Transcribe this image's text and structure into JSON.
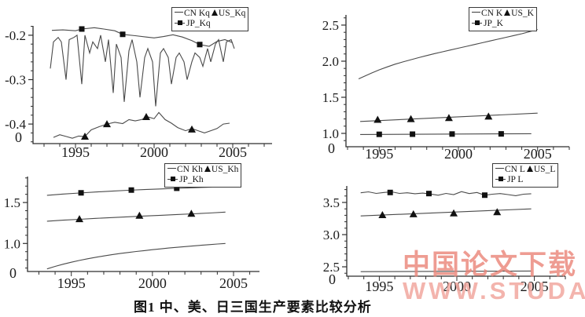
{
  "caption": "图1 中、美、日三国生产要素比较分析",
  "watermark": {
    "line1": "中国论文下载",
    "line2": "WWW.STUDA.",
    "color1": "#ea8478",
    "color2": "#f2a89f"
  },
  "colors": {
    "axis": "#2e2e2e",
    "line": "#4a4a4a",
    "marker": "#111111",
    "text": "#1c1c1c"
  },
  "chart_data": [
    {
      "id": "Kq",
      "type": "line",
      "legend": {
        "cn": "CN Kq",
        "us": "US_Kq",
        "jp": "JP_Kq"
      },
      "legend_position": "top-right",
      "grid": false,
      "xlim": [
        1992.3,
        2007.5
      ],
      "ylim": [
        -0.444,
        -0.179
      ],
      "xticks": [
        1995,
        2000,
        2005
      ],
      "xtick_labels": [
        "1995",
        "2000",
        "2005"
      ],
      "yticks": [
        -0.2,
        -0.3,
        -0.4
      ],
      "ytick_labels": [
        "-0.2",
        "-0.3",
        "-0.4"
      ],
      "y_minor_step": 0.02,
      "origin_label": "0",
      "series": [
        {
          "name": "CN_Kq",
          "marker": "none",
          "x": [
            1993.4,
            1993.6,
            1993.9,
            1994.1,
            1994.4,
            1994.6,
            1994.9,
            1995.1,
            1995.4,
            1995.6,
            1995.9,
            1996.1,
            1996.4,
            1996.6,
            1996.9,
            1997.1,
            1997.4,
            1997.6,
            1997.9,
            1998.1,
            1998.4,
            1998.6,
            1998.9,
            1999.1,
            1999.4,
            1999.6,
            1999.9,
            2000.1,
            2000.4,
            2000.6,
            2000.9,
            2001.1,
            2001.4,
            2001.6,
            2001.9,
            2002.1,
            2002.4,
            2002.6,
            2002.9,
            2003.1,
            2003.4,
            2003.6,
            2003.9,
            2004.1,
            2004.4,
            2004.6,
            2004.9,
            2005.1
          ],
          "y": [
            -0.275,
            -0.215,
            -0.205,
            -0.215,
            -0.3,
            -0.21,
            -0.205,
            -0.2,
            -0.31,
            -0.2,
            -0.24,
            -0.215,
            -0.23,
            -0.2,
            -0.26,
            -0.21,
            -0.33,
            -0.22,
            -0.25,
            -0.35,
            -0.235,
            -0.21,
            -0.26,
            -0.34,
            -0.25,
            -0.23,
            -0.26,
            -0.36,
            -0.24,
            -0.23,
            -0.25,
            -0.31,
            -0.25,
            -0.24,
            -0.26,
            -0.3,
            -0.26,
            -0.24,
            -0.25,
            -0.27,
            -0.23,
            -0.26,
            -0.22,
            -0.21,
            -0.26,
            -0.215,
            -0.21,
            -0.23
          ]
        },
        {
          "name": "US_Kq",
          "marker": "triangle",
          "x": [
            1993.6,
            1994.0,
            1994.4,
            1994.8,
            1995.2,
            1995.6,
            1996.0,
            1996.5,
            1997.0,
            1997.5,
            1998.0,
            1998.4,
            1998.8,
            1999.2,
            1999.6,
            2000.0,
            2000.3,
            2000.7,
            2001.1,
            2001.5,
            2002.0,
            2002.4,
            2002.8,
            2003.2,
            2003.6,
            2004.0,
            2004.4,
            2004.8
          ],
          "y": [
            -0.43,
            -0.424,
            -0.428,
            -0.432,
            -0.427,
            -0.428,
            -0.413,
            -0.406,
            -0.4,
            -0.396,
            -0.399,
            -0.39,
            -0.393,
            -0.39,
            -0.384,
            -0.388,
            -0.374,
            -0.39,
            -0.398,
            -0.408,
            -0.415,
            -0.41,
            -0.415,
            -0.42,
            -0.415,
            -0.41,
            -0.4,
            -0.398
          ],
          "markers": [
            [
              1995.6,
              -0.428
            ],
            [
              1997.0,
              -0.4
            ],
            [
              1999.5,
              -0.384
            ],
            [
              2002.4,
              -0.412
            ]
          ]
        },
        {
          "name": "JP_Kq",
          "marker": "square",
          "x": [
            1993.5,
            1994.2,
            1995.0,
            1995.4,
            1996.2,
            1996.8,
            1997.5,
            1998.0,
            1998.8,
            1999.5,
            2000.0,
            2000.6,
            2001.2,
            2001.8,
            2002.4,
            2002.9,
            2003.5,
            2004.0,
            2004.5,
            2005.0
          ],
          "y": [
            -0.189,
            -0.188,
            -0.19,
            -0.186,
            -0.183,
            -0.186,
            -0.19,
            -0.198,
            -0.201,
            -0.204,
            -0.206,
            -0.203,
            -0.199,
            -0.204,
            -0.212,
            -0.221,
            -0.225,
            -0.214,
            -0.21,
            -0.217
          ],
          "markers": [
            [
              1995.4,
              -0.186
            ],
            [
              1998.0,
              -0.198
            ],
            [
              2002.9,
              -0.221
            ]
          ]
        }
      ]
    },
    {
      "id": "K",
      "type": "line",
      "legend": {
        "cn": "CN K",
        "us": "US_K",
        "jp": "JP_K"
      },
      "legend_position": "top-right",
      "grid": false,
      "xlim": [
        1992.9,
        2007.0
      ],
      "ylim": [
        0.815,
        2.641
      ],
      "xticks": [
        1995,
        2000,
        2005
      ],
      "xtick_labels": [
        "1995",
        "2000",
        "2005"
      ],
      "yticks": [
        2.5,
        2.0,
        1.5,
        1.0
      ],
      "ytick_labels": [
        "2.5",
        "2.0",
        "1.5",
        "1.0"
      ],
      "y_minor_step": 0.1,
      "origin_label": "0",
      "series": [
        {
          "name": "CN_K",
          "marker": "none",
          "x": [
            1993.7,
            1994.0,
            1994.5,
            1995.0,
            1995.5,
            1996.0,
            1996.5,
            1997.0,
            1997.5,
            1998.0,
            1998.5,
            1999.0,
            1999.5,
            2000.0,
            2000.5,
            2001.0,
            2001.5,
            2002.0,
            2002.5,
            2003.0,
            2003.5,
            2004.0,
            2004.5,
            2005.0
          ],
          "y": [
            1.755,
            1.785,
            1.835,
            1.88,
            1.92,
            1.958,
            1.99,
            2.02,
            2.05,
            2.078,
            2.105,
            2.13,
            2.155,
            2.18,
            2.205,
            2.23,
            2.255,
            2.28,
            2.305,
            2.33,
            2.355,
            2.38,
            2.41,
            2.44
          ]
        },
        {
          "name": "US_K",
          "marker": "triangle",
          "x": [
            1993.8,
            2005.0
          ],
          "y": [
            1.165,
            1.28
          ],
          "markers": [
            [
              1994.9,
              1.19
            ],
            [
              1997.0,
              1.2
            ],
            [
              1999.4,
              1.215
            ],
            [
              2001.9,
              1.235
            ]
          ]
        },
        {
          "name": "JP_K",
          "marker": "square",
          "x": [
            1993.8,
            2004.6
          ],
          "y": [
            0.985,
            0.995
          ],
          "markers": [
            [
              1995.0,
              0.987
            ],
            [
              1997.1,
              0.989
            ],
            [
              1999.6,
              0.991
            ],
            [
              2002.7,
              0.993
            ]
          ]
        }
      ]
    },
    {
      "id": "Kh",
      "type": "line",
      "legend": {
        "cn": "CN Kh",
        "us": "US_Kh",
        "jp": "JP_Kh"
      },
      "legend_position": "top-right",
      "grid": false,
      "xlim": [
        1992.3,
        2006.6
      ],
      "ylim": [
        0.658,
        1.817
      ],
      "xticks": [
        1995,
        2000,
        2005
      ],
      "xtick_labels": [
        "1995",
        "2000",
        "2005"
      ],
      "yticks": [
        1.5,
        1.0
      ],
      "ytick_labels": [
        "1.5",
        "1.0"
      ],
      "y_minor_step": 0.1,
      "origin_label": "0",
      "series": [
        {
          "name": "CN_Kh",
          "marker": "none",
          "x": [
            1993.5,
            1994.0,
            1994.5,
            1995.0,
            1995.5,
            1996.0,
            1996.5,
            1997.0,
            1997.5,
            1998.0,
            1998.5,
            1999.0,
            1999.5,
            2000.0,
            2000.5,
            2001.0,
            2001.5,
            2002.0,
            2002.5,
            2003.0,
            2003.5,
            2004.0,
            2004.5
          ],
          "y": [
            0.69,
            0.72,
            0.747,
            0.771,
            0.793,
            0.813,
            0.831,
            0.848,
            0.863,
            0.877,
            0.89,
            0.902,
            0.913,
            0.924,
            0.934,
            0.944,
            0.953,
            0.962,
            0.97,
            0.978,
            0.986,
            0.993,
            1.0
          ]
        },
        {
          "name": "US_Kh",
          "marker": "triangle",
          "x": [
            1993.5,
            1994.5,
            1995.5,
            1996.5,
            1997.5,
            1998.5,
            1999.5,
            2000.5,
            2001.5,
            2002.5,
            2003.5,
            2004.5
          ],
          "y": [
            1.272,
            1.284,
            1.295,
            1.306,
            1.316,
            1.326,
            1.335,
            1.344,
            1.353,
            1.362,
            1.372,
            1.383
          ],
          "markers": [
            [
              1995.5,
              1.298
            ],
            [
              1999.2,
              1.34
            ],
            [
              2002.4,
              1.365
            ]
          ]
        },
        {
          "name": "JP_Kh",
          "marker": "square",
          "x": [
            1993.5,
            1994.5,
            1995.5,
            1996.5,
            1997.5,
            1998.5,
            1999.5,
            2000.5,
            2001.5,
            2002.5,
            2003.5,
            2004.5
          ],
          "y": [
            1.588,
            1.603,
            1.616,
            1.628,
            1.639,
            1.649,
            1.658,
            1.666,
            1.673,
            1.68,
            1.687,
            1.693
          ],
          "markers": [
            [
              1995.6,
              1.618
            ],
            [
              1998.7,
              1.652
            ],
            [
              2001.5,
              1.674
            ]
          ]
        }
      ]
    },
    {
      "id": "L",
      "type": "line",
      "legend": {
        "cn": "CN L",
        "us": "US_L",
        "jp": "JP L"
      },
      "legend_position": "top-right",
      "grid": false,
      "xlim": [
        1992.9,
        2007.0
      ],
      "ylim": [
        2.354,
        3.756
      ],
      "xticks": [
        1995,
        2000,
        2005
      ],
      "xtick_labels": [
        "1995",
        "2000",
        "2005"
      ],
      "yticks": [
        3.5,
        3.0,
        2.5
      ],
      "ytick_labels": [
        "3.5",
        "3.0",
        "2.5"
      ],
      "y_minor_step": 0.1,
      "origin_label": "0",
      "series": [
        {
          "name": "CN_L",
          "marker": "none",
          "x": [
            1993.8,
            2004.8
          ],
          "y": [
            2.425,
            2.435
          ]
        },
        {
          "name": "US_L",
          "marker": "triangle",
          "x": [
            1993.8,
            2004.8
          ],
          "y": [
            3.29,
            3.4
          ],
          "markers": [
            [
              1995.2,
              3.305
            ],
            [
              1997.2,
              3.318
            ],
            [
              1999.8,
              3.332
            ],
            [
              2002.6,
              3.35
            ]
          ]
        },
        {
          "name": "JP_L",
          "marker": "square",
          "x": [
            1993.8,
            1994.3,
            1994.8,
            1995.3,
            1995.8,
            1996.3,
            1996.8,
            1997.3,
            1997.8,
            1998.3,
            1998.8,
            1999.3,
            1999.8,
            2000.3,
            2000.8,
            2001.3,
            2001.8,
            2002.3,
            2002.8,
            2003.3,
            2003.8,
            2004.3,
            2004.8
          ],
          "y": [
            3.65,
            3.665,
            3.64,
            3.655,
            3.665,
            3.64,
            3.65,
            3.635,
            3.645,
            3.63,
            3.612,
            3.64,
            3.622,
            3.668,
            3.638,
            3.655,
            3.612,
            3.628,
            3.638,
            3.622,
            3.605,
            3.628,
            3.635
          ],
          "markers": [
            [
              1995.7,
              3.655
            ],
            [
              1998.2,
              3.638
            ],
            [
              2001.8,
              3.613
            ]
          ]
        }
      ]
    }
  ]
}
